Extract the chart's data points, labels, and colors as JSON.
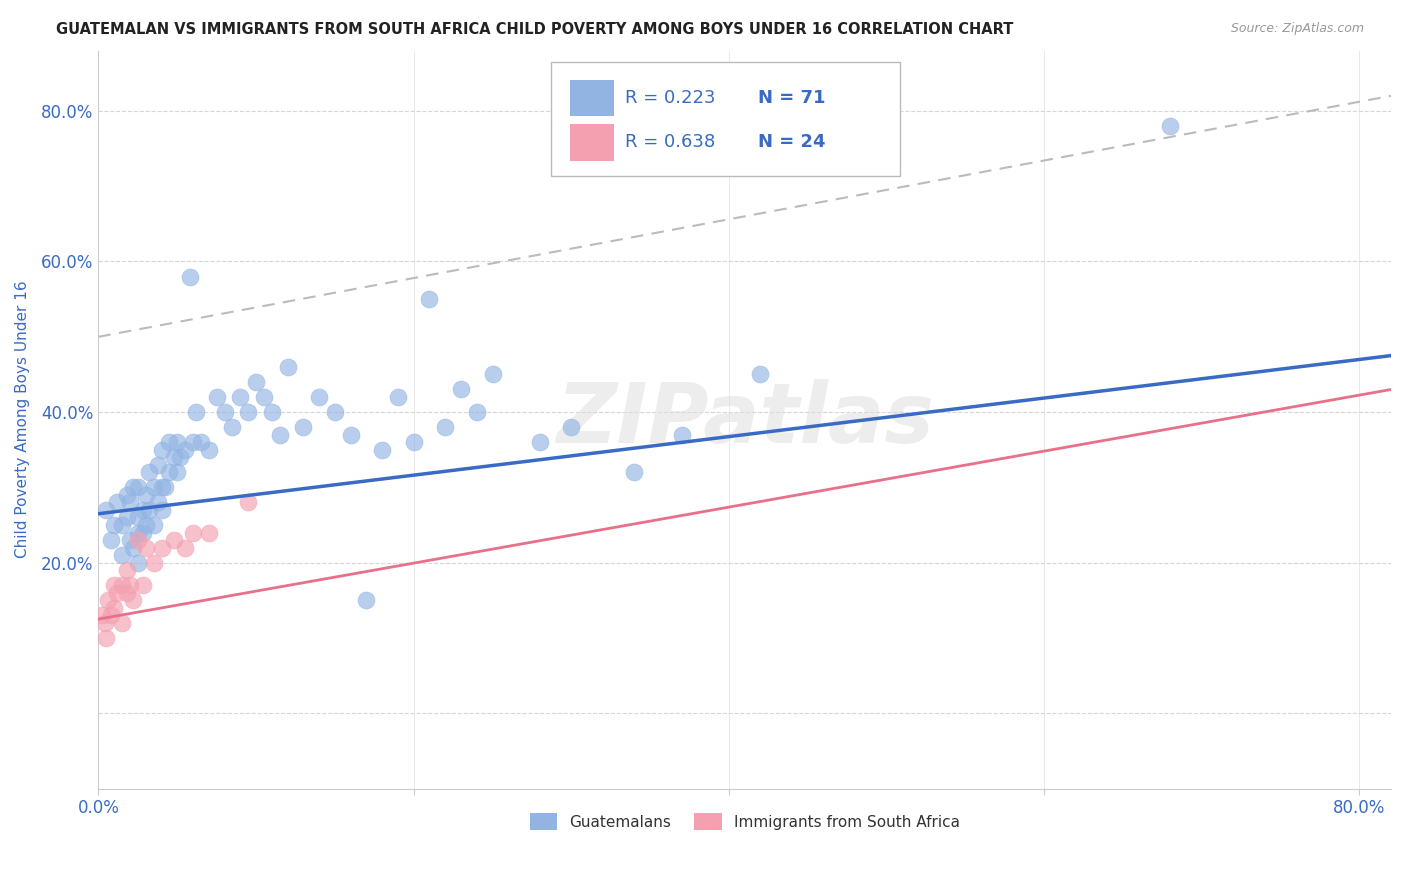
{
  "title": "GUATEMALAN VS IMMIGRANTS FROM SOUTH AFRICA CHILD POVERTY AMONG BOYS UNDER 16 CORRELATION CHART",
  "source": "Source: ZipAtlas.com",
  "ylabel": "Child Poverty Among Boys Under 16",
  "xlim": [
    0.0,
    0.82
  ],
  "ylim": [
    -0.1,
    0.88
  ],
  "x_ticks": [
    0.0,
    0.2,
    0.4,
    0.6,
    0.8
  ],
  "x_tick_labels": [
    "0.0%",
    "",
    "",
    "",
    "80.0%"
  ],
  "y_ticks": [
    0.0,
    0.2,
    0.4,
    0.6,
    0.8
  ],
  "y_tick_labels": [
    "",
    "20.0%",
    "40.0%",
    "60.0%",
    "80.0%"
  ],
  "blue_R": "0.223",
  "blue_N": "71",
  "pink_R": "0.638",
  "pink_N": "24",
  "blue_color": "#92B4E3",
  "pink_color": "#F4A0B0",
  "blue_line_color": "#3A6BC4",
  "pink_line_color": "#E8708A",
  "dashed_line_color": "#BBBBBB",
  "grid_color": "#CCCCCC",
  "title_color": "#222222",
  "axis_label_color": "#3A6BC4",
  "tick_color": "#3A6BC4",
  "watermark": "ZIPatlas",
  "blue_scatter_x": [
    0.005,
    0.008,
    0.01,
    0.012,
    0.015,
    0.015,
    0.018,
    0.018,
    0.02,
    0.02,
    0.022,
    0.022,
    0.025,
    0.025,
    0.025,
    0.025,
    0.028,
    0.028,
    0.03,
    0.03,
    0.032,
    0.032,
    0.035,
    0.035,
    0.038,
    0.038,
    0.04,
    0.04,
    0.04,
    0.042,
    0.045,
    0.045,
    0.048,
    0.05,
    0.05,
    0.052,
    0.055,
    0.058,
    0.06,
    0.062,
    0.065,
    0.07,
    0.075,
    0.08,
    0.085,
    0.09,
    0.095,
    0.1,
    0.105,
    0.11,
    0.115,
    0.12,
    0.13,
    0.14,
    0.15,
    0.16,
    0.17,
    0.18,
    0.19,
    0.2,
    0.21,
    0.22,
    0.23,
    0.24,
    0.25,
    0.28,
    0.3,
    0.34,
    0.37,
    0.42,
    0.68
  ],
  "blue_scatter_y": [
    0.27,
    0.23,
    0.25,
    0.28,
    0.21,
    0.25,
    0.26,
    0.29,
    0.23,
    0.28,
    0.22,
    0.3,
    0.2,
    0.24,
    0.26,
    0.3,
    0.24,
    0.27,
    0.25,
    0.29,
    0.27,
    0.32,
    0.25,
    0.3,
    0.28,
    0.33,
    0.27,
    0.3,
    0.35,
    0.3,
    0.32,
    0.36,
    0.34,
    0.32,
    0.36,
    0.34,
    0.35,
    0.58,
    0.36,
    0.4,
    0.36,
    0.35,
    0.42,
    0.4,
    0.38,
    0.42,
    0.4,
    0.44,
    0.42,
    0.4,
    0.37,
    0.46,
    0.38,
    0.42,
    0.4,
    0.37,
    0.15,
    0.35,
    0.42,
    0.36,
    0.55,
    0.38,
    0.43,
    0.4,
    0.45,
    0.36,
    0.38,
    0.32,
    0.37,
    0.45,
    0.78
  ],
  "pink_scatter_x": [
    0.002,
    0.004,
    0.005,
    0.006,
    0.008,
    0.01,
    0.01,
    0.012,
    0.015,
    0.015,
    0.018,
    0.018,
    0.02,
    0.022,
    0.025,
    0.028,
    0.03,
    0.035,
    0.04,
    0.048,
    0.055,
    0.06,
    0.07,
    0.095
  ],
  "pink_scatter_y": [
    0.13,
    0.12,
    0.1,
    0.15,
    0.13,
    0.14,
    0.17,
    0.16,
    0.12,
    0.17,
    0.16,
    0.19,
    0.17,
    0.15,
    0.23,
    0.17,
    0.22,
    0.2,
    0.22,
    0.23,
    0.22,
    0.24,
    0.24,
    0.28
  ],
  "blue_line_x0": 0.0,
  "blue_line_x1": 0.82,
  "blue_line_y0": 0.265,
  "blue_line_y1": 0.475,
  "pink_line_x0": 0.0,
  "pink_line_x1": 0.82,
  "pink_line_y0": 0.125,
  "pink_line_y1": 0.43,
  "dash_line_x0": 0.0,
  "dash_line_x1": 0.82,
  "dash_line_y0": 0.5,
  "dash_line_y1": 0.82
}
